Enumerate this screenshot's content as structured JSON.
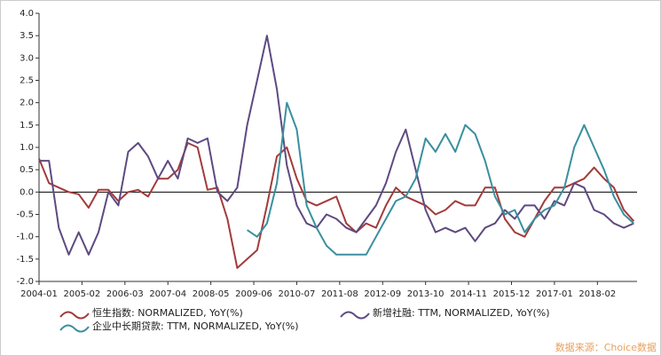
{
  "chart_data": {
    "type": "line",
    "x": [
      "2004-01",
      "2004-04",
      "2004-07",
      "2004-10",
      "2005-01",
      "2005-04",
      "2005-07",
      "2005-10",
      "2006-01",
      "2006-04",
      "2006-07",
      "2006-10",
      "2007-01",
      "2007-04",
      "2007-07",
      "2007-10",
      "2008-01",
      "2008-04",
      "2008-07",
      "2008-10",
      "2009-01",
      "2009-04",
      "2009-07",
      "2009-10",
      "2010-01",
      "2010-04",
      "2010-07",
      "2010-10",
      "2011-01",
      "2011-04",
      "2011-07",
      "2011-10",
      "2012-01",
      "2012-04",
      "2012-07",
      "2012-10",
      "2013-01",
      "2013-04",
      "2013-07",
      "2013-10",
      "2014-01",
      "2014-04",
      "2014-07",
      "2014-10",
      "2015-01",
      "2015-04",
      "2015-07",
      "2015-10",
      "2016-01",
      "2016-04",
      "2016-07",
      "2016-10",
      "2017-01",
      "2017-04",
      "2017-07",
      "2017-10",
      "2018-01",
      "2018-04",
      "2018-07",
      "2018-10",
      "2019-01"
    ],
    "series": [
      {
        "name": "恒生指数: NORMALIZED, YoY(%)",
        "color": "#a33b3b",
        "values": [
          0.75,
          0.2,
          0.1,
          0.0,
          -0.05,
          -0.35,
          0.05,
          0.05,
          -0.2,
          0.0,
          0.05,
          -0.1,
          0.3,
          0.3,
          0.5,
          1.1,
          1.0,
          0.05,
          0.1,
          -0.6,
          -1.7,
          -1.5,
          -1.3,
          -0.3,
          0.8,
          1.0,
          0.3,
          -0.2,
          -0.3,
          -0.2,
          -0.1,
          -0.7,
          -0.9,
          -0.7,
          -0.8,
          -0.3,
          0.1,
          -0.1,
          -0.2,
          -0.3,
          -0.5,
          -0.4,
          -0.2,
          -0.3,
          -0.3,
          0.1,
          0.1,
          -0.6,
          -0.9,
          -1.0,
          -0.6,
          -0.2,
          0.1,
          0.1,
          0.2,
          0.3,
          0.55,
          0.3,
          0.1,
          -0.4,
          -0.65
        ]
      },
      {
        "name": "新增社融: TTM, NORMALIZED, YoY(%)",
        "color": "#5e4a80",
        "values": [
          0.7,
          0.7,
          -0.8,
          -1.4,
          -0.9,
          -1.4,
          -0.9,
          0.0,
          -0.3,
          0.9,
          1.1,
          0.8,
          0.3,
          0.7,
          0.3,
          1.2,
          1.1,
          1.2,
          0.0,
          -0.2,
          0.1,
          1.5,
          2.5,
          3.5,
          2.3,
          0.6,
          -0.3,
          -0.7,
          -0.8,
          -0.5,
          -0.6,
          -0.8,
          -0.9,
          -0.6,
          -0.3,
          0.2,
          0.9,
          1.4,
          0.5,
          -0.4,
          -0.9,
          -0.8,
          -0.9,
          -0.8,
          -1.1,
          -0.8,
          -0.7,
          -0.4,
          -0.6,
          -0.3,
          -0.3,
          -0.6,
          -0.2,
          -0.3,
          0.2,
          0.1,
          -0.4,
          -0.5,
          -0.7,
          -0.8,
          -0.7
        ]
      },
      {
        "name": "企业中长期贷款: TTM, NORMALIZED, YoY(%)",
        "color": "#3a8f9e",
        "values": [
          null,
          null,
          null,
          null,
          null,
          null,
          null,
          null,
          null,
          null,
          null,
          null,
          null,
          null,
          null,
          null,
          null,
          null,
          null,
          null,
          null,
          -0.85,
          -1.0,
          -0.7,
          0.2,
          2.0,
          1.4,
          -0.3,
          -0.8,
          -1.2,
          -1.4,
          -1.4,
          -1.4,
          -1.4,
          -1.0,
          -0.6,
          -0.2,
          -0.1,
          0.3,
          1.2,
          0.9,
          1.3,
          0.9,
          1.5,
          1.3,
          0.7,
          -0.1,
          -0.5,
          -0.4,
          -0.9,
          -0.6,
          -0.4,
          -0.3,
          0.1,
          1.0,
          1.5,
          1.0,
          0.5,
          -0.1,
          -0.5,
          -0.7
        ]
      }
    ],
    "xlim": [
      "2004-01",
      "2019-02"
    ],
    "xticks": [
      "2004-01",
      "2005-02",
      "2006-03",
      "2007-04",
      "2008-05",
      "2009-06",
      "2010-07",
      "2011-08",
      "2012-09",
      "2013-10",
      "2014-11",
      "2015-12",
      "2017-01",
      "2018-02"
    ],
    "ylim": [
      -2.0,
      4.0
    ],
    "yticks": [
      {
        "value": -2.0,
        "label": "-2.0"
      },
      -1.5,
      {
        "value": -1.0,
        "label": "-1.0"
      },
      -0.5,
      {
        "value": 0.0,
        "label": "0.0"
      },
      0.5,
      {
        "value": 1.0,
        "label": "1.0"
      },
      1.5,
      {
        "value": 2.0,
        "label": "2.0"
      },
      2.5,
      {
        "value": 3.0,
        "label": "3.0"
      },
      3.5,
      {
        "value": 4.0,
        "label": "4.0"
      }
    ],
    "zero_line": true,
    "source": "数据来源：Choice数据"
  }
}
